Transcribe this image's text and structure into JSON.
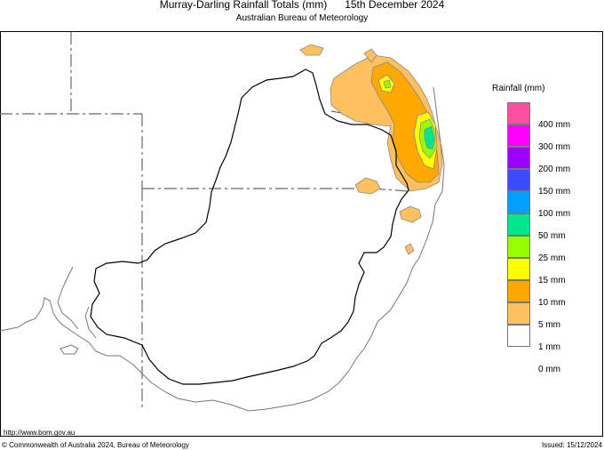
{
  "header": {
    "title": "Murray-Darling Rainfall Totals (mm)      15th December 2024",
    "subtitle": "Australian Bureau of Meteorology"
  },
  "legend": {
    "title": "Rainfall (mm)",
    "items": [
      {
        "label": "400 mm",
        "color": "#ff4fa0"
      },
      {
        "label": "300 mm",
        "color": "#ff00ff"
      },
      {
        "label": "200 mm",
        "color": "#9b00ff"
      },
      {
        "label": "150 mm",
        "color": "#3c4bff"
      },
      {
        "label": "100 mm",
        "color": "#00a0ff"
      },
      {
        "label": "50 mm",
        "color": "#00e68c"
      },
      {
        "label": "25 mm",
        "color": "#96ff00"
      },
      {
        "label": "15 mm",
        "color": "#ffff00"
      },
      {
        "label": "10 mm",
        "color": "#ffa800"
      },
      {
        "label": "5 mm",
        "color": "#ffc060"
      },
      {
        "label": "1 mm",
        "color": "#ffffff"
      },
      {
        "label": "0 mm",
        "color": null
      }
    ]
  },
  "footer": {
    "url": "http://www.bom.gov.au",
    "copyright": "© Commonwealth of Australia 2024, Bureau of Meteorology",
    "issued": "Issued: 15/12/2024"
  }
}
